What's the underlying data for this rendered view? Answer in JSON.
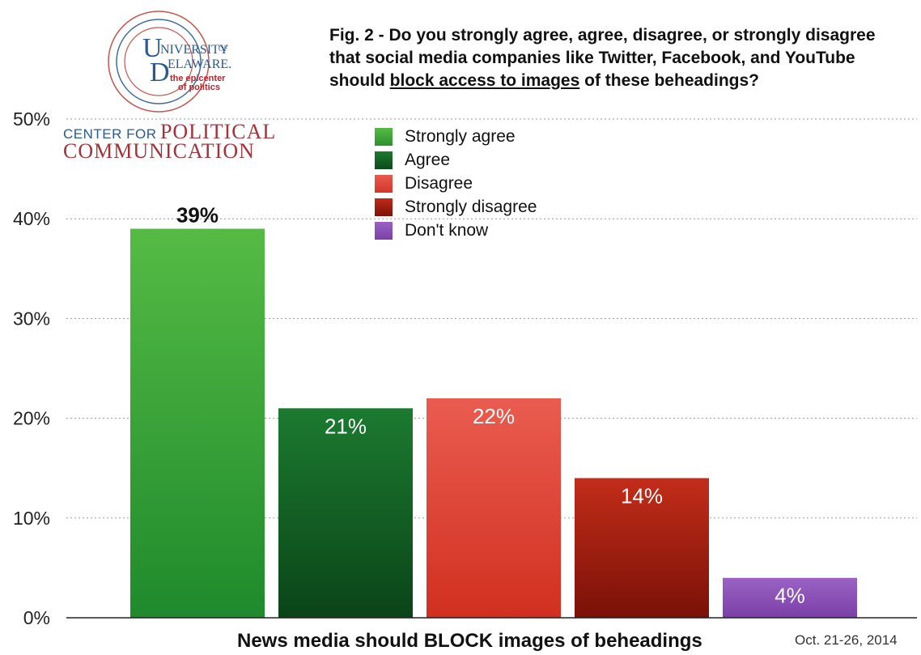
{
  "title": {
    "part1": "Fig. 2 - Do you strongly agree, agree, disagree, or strongly disagree that social media companies like Twitter, Facebook, and YouTube should ",
    "underlined": "block access to images",
    "part2": " of these beheadings?"
  },
  "logo": {
    "ud_text_1": "NIVERSITY",
    "ud_of": "OF",
    "ud_text_2": "ELAWARE.",
    "tagline_1": "the epicenter",
    "tagline_2": "of politics",
    "center_for": "CENTER FOR",
    "political": "POLITICAL",
    "communication": "COMMUNICATION"
  },
  "footer_date": "Oct. 21-26, 2014",
  "colors": {
    "strongly_agree": "#4aaa3a",
    "agree": "#16692a",
    "disagree": "#e0483a",
    "strongly_disagree": "#b22414",
    "dont_know": "#8a50b5"
  },
  "chart_data": {
    "type": "bar",
    "categories": [
      "Strongly agree",
      "Agree",
      "Disagree",
      "Strongly disagree",
      "Don't know"
    ],
    "values": [
      39,
      21,
      22,
      14,
      4
    ],
    "data_labels": [
      "39%",
      "21%",
      "22%",
      "14%",
      "4%"
    ],
    "xlabel": "News media should BLOCK images of beheadings",
    "ylabel": "",
    "ylim": [
      0,
      50
    ],
    "yticks": [
      "0%",
      "10%",
      "20%",
      "30%",
      "40%",
      "50%"
    ],
    "grid": true,
    "legend": "top-center",
    "legend_entries": [
      "Strongly agree",
      "Agree",
      "Disagree",
      "Strongly disagree",
      "Don't know"
    ]
  }
}
